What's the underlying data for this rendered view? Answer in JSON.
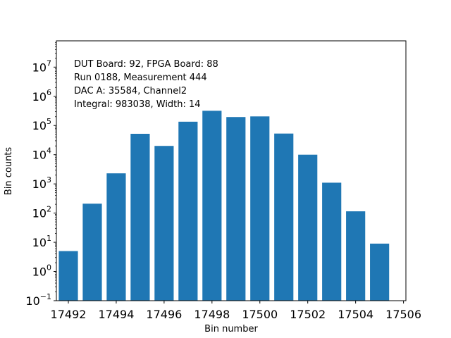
{
  "chart_data": {
    "type": "bar",
    "title": "",
    "xlabel": "Bin number",
    "ylabel": "Bin counts",
    "yscale": "log",
    "ylim_exp": [
      -1,
      7.9
    ],
    "xlim": [
      17491.5,
      17506.1
    ],
    "x_ticks": [
      "17492",
      "17494",
      "17496",
      "17498",
      "17500",
      "17502",
      "17504",
      "17506"
    ],
    "y_ticks": [
      {
        "base": "10",
        "exp": "−1"
      },
      {
        "base": "10",
        "exp": "0"
      },
      {
        "base": "10",
        "exp": "1"
      },
      {
        "base": "10",
        "exp": "2"
      },
      {
        "base": "10",
        "exp": "3"
      },
      {
        "base": "10",
        "exp": "4"
      },
      {
        "base": "10",
        "exp": "5"
      },
      {
        "base": "10",
        "exp": "6"
      },
      {
        "base": "10",
        "exp": "7"
      }
    ],
    "bar_color": "#1f77b4",
    "grid": false,
    "bars": [
      {
        "x": 17492,
        "value": 5
      },
      {
        "x": 17493,
        "value": 210
      },
      {
        "x": 17494,
        "value": 2300
      },
      {
        "x": 17495,
        "value": 52000
      },
      {
        "x": 17496,
        "value": 20000
      },
      {
        "x": 17497,
        "value": 135000
      },
      {
        "x": 17498,
        "value": 320000
      },
      {
        "x": 17499,
        "value": 195000
      },
      {
        "x": 17500,
        "value": 205000
      },
      {
        "x": 17501,
        "value": 53000
      },
      {
        "x": 17502,
        "value": 10000
      },
      {
        "x": 17503,
        "value": 1100
      },
      {
        "x": 17504,
        "value": 115
      },
      {
        "x": 17505,
        "value": 9
      }
    ],
    "annotations": [
      "DUT Board: 92, FPGA Board: 88",
      "Run 0188, Measurement 444",
      "DAC A: 35584, Channel2",
      "Integral: 983038, Width: 14"
    ]
  }
}
